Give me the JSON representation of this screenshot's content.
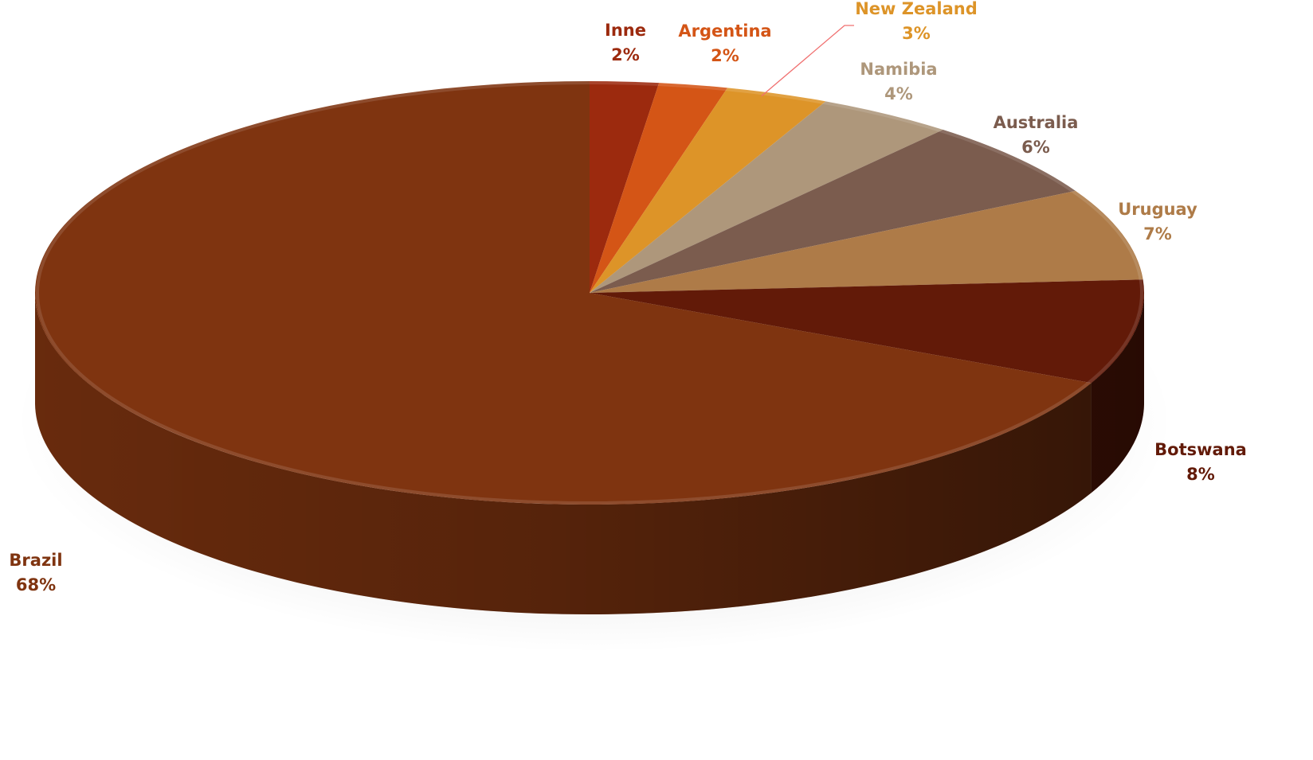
{
  "chart_data": {
    "type": "pie",
    "title": "",
    "legend": "none",
    "slices": [
      {
        "name": "Inne",
        "value": 2,
        "label": "2%",
        "color": "#9C2A0E"
      },
      {
        "name": "Argentina",
        "value": 2,
        "label": "2%",
        "color": "#D45516"
      },
      {
        "name": "New Zealand",
        "value": 3,
        "label": "3%",
        "color": "#DD9428"
      },
      {
        "name": "Namibia",
        "value": 4,
        "label": "4%",
        "color": "#AE977B"
      },
      {
        "name": "Australia",
        "value": 6,
        "label": "6%",
        "color": "#7B5C4E"
      },
      {
        "name": "Uruguay",
        "value": 7,
        "label": "7%",
        "color": "#AE7B48"
      },
      {
        "name": "Botswana",
        "value": 8,
        "label": "8%",
        "color": "#621A08"
      },
      {
        "name": "Brazil",
        "value": 68,
        "label": "68%",
        "color": "#7F3410"
      }
    ]
  }
}
